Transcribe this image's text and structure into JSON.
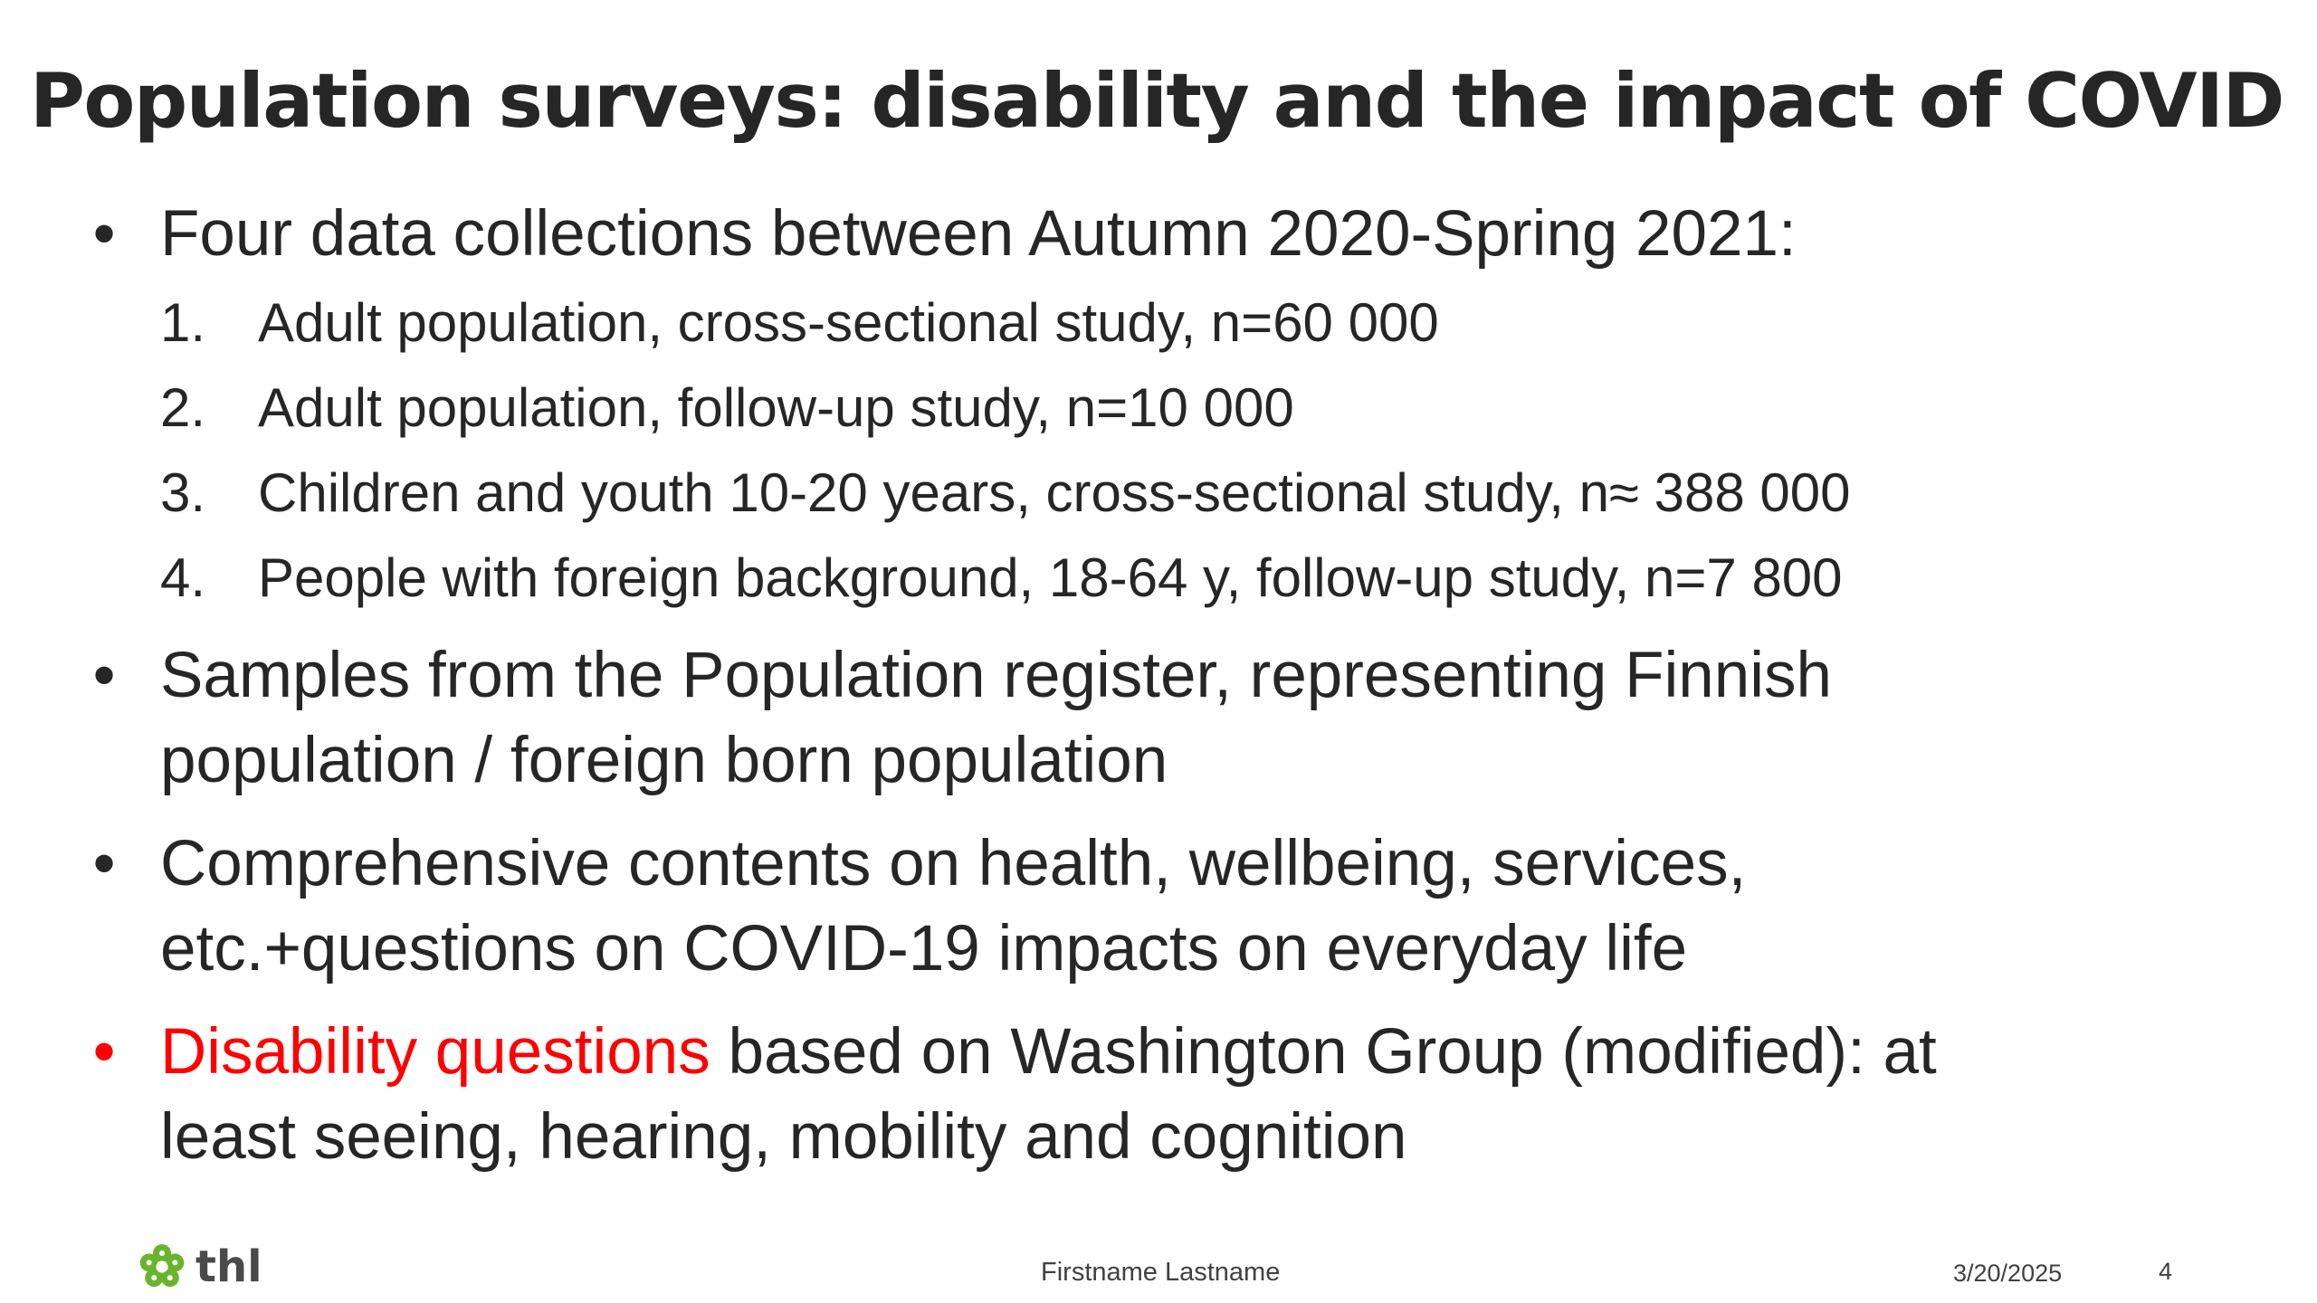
{
  "slide": {
    "title": "Population surveys: disability and the impact of COVID",
    "bullets": [
      {
        "text": "Four data collections between Autumn 2020-Spring 2021:",
        "numbered": [
          {
            "num": "1.",
            "text": "Adult population, cross-sectional study, n=60 000"
          },
          {
            "num": "2.",
            "text": "Adult population, follow-up study, n=10 000"
          },
          {
            "num": "3.",
            "text": "Children and youth 10-20 years, cross-sectional study, n≈ 388 000"
          },
          {
            "num": "4.",
            "text": "People with foreign background, 18-64 y, follow-up study, n=7 800"
          }
        ]
      },
      {
        "line1": "Samples from the Population register, representing Finnish",
        "line2": "population / foreign born population"
      },
      {
        "line1": "Comprehensive contents on health, wellbeing, services,",
        "line2": "etc.+questions on COVID-19 impacts on everyday life"
      },
      {
        "highlight": "Disability questions",
        "line1_rest": " based on Washington Group (modified): at",
        "line2": "least seeing, hearing, mobility and cognition"
      }
    ],
    "bullet_symbol": "•"
  },
  "footer": {
    "logo_text": "thl",
    "author": "Firstname Lastname",
    "date": "3/20/2025",
    "page": "4"
  },
  "colors": {
    "text": "#262626",
    "highlight": "#ff0000",
    "logo_green": "#6ab42d"
  },
  "icons": {
    "logo": "thl-flower-logo-icon"
  }
}
